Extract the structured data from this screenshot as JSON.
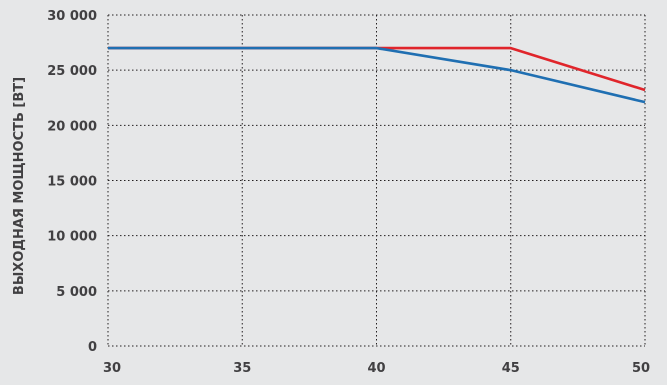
{
  "chart_data": {
    "type": "line",
    "title": "",
    "xlabel": "",
    "ylabel": "ВЫХОДНАЯ МОЩНОСТЬ [ВТ]",
    "xlim": [
      30,
      50
    ],
    "ylim": [
      0,
      30000
    ],
    "x_ticks": [
      30,
      35,
      40,
      45,
      50
    ],
    "y_ticks": [
      0,
      5000,
      10000,
      15000,
      20000,
      25000,
      30000
    ],
    "x_tick_labels": [
      "30",
      "35",
      "40",
      "45",
      "50"
    ],
    "y_tick_labels": [
      "0",
      "5 000",
      "10 000",
      "15 000",
      "20 000",
      "25 000",
      "30 000"
    ],
    "grid": true,
    "legend": "none",
    "series": [
      {
        "color": "#e0252b",
        "points": [
          [
            30,
            27000
          ],
          [
            40,
            27000
          ],
          [
            45,
            27000
          ],
          [
            50,
            23200
          ]
        ]
      },
      {
        "color": "#1f6fb2",
        "points": [
          [
            30,
            27000
          ],
          [
            40,
            27000
          ],
          [
            45,
            25000
          ],
          [
            50,
            22100
          ]
        ]
      }
    ]
  },
  "colors": {
    "background": "#e6e7e8",
    "grid": "#231f20",
    "text": "#414042"
  }
}
